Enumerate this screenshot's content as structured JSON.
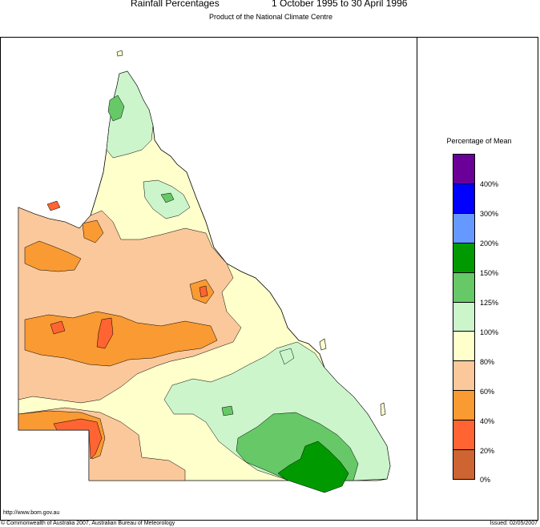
{
  "header": {
    "title_left": "Rainfall Percentages",
    "title_right": "1 October 1995 to 30 April 1996",
    "subtitle": "Product of the National Climate Centre"
  },
  "legend": {
    "title": "Percentage of Mean",
    "swatches": [
      {
        "color": "#6a0098"
      },
      {
        "color": "#0000ff"
      },
      {
        "color": "#6699ff"
      },
      {
        "color": "#009a00"
      },
      {
        "color": "#66c866"
      },
      {
        "color": "#ccf5cc"
      },
      {
        "color": "#ffffcc"
      },
      {
        "color": "#fac89b"
      },
      {
        "color": "#fa9a32"
      },
      {
        "color": "#ff6432"
      },
      {
        "color": "#cd6432"
      }
    ],
    "labels": [
      "400%",
      "300%",
      "200%",
      "150%",
      "125%",
      "100%",
      "80%",
      "60%",
      "40%",
      "20%",
      "0%"
    ]
  },
  "footer": {
    "url": "http://www.bom.gov.au",
    "copyright": "© Commonwealth of Australia 2007, Australian Bureau of Meteorology",
    "issued": "Issued: 02/05/2007"
  },
  "colors": {
    "lt125": "#66c866",
    "lt150": "#009a00",
    "p100": "#ccf5cc",
    "p80": "#ffffcc",
    "p60": "#fac89b",
    "p40": "#fa9a32",
    "p20": "#ff6432"
  }
}
